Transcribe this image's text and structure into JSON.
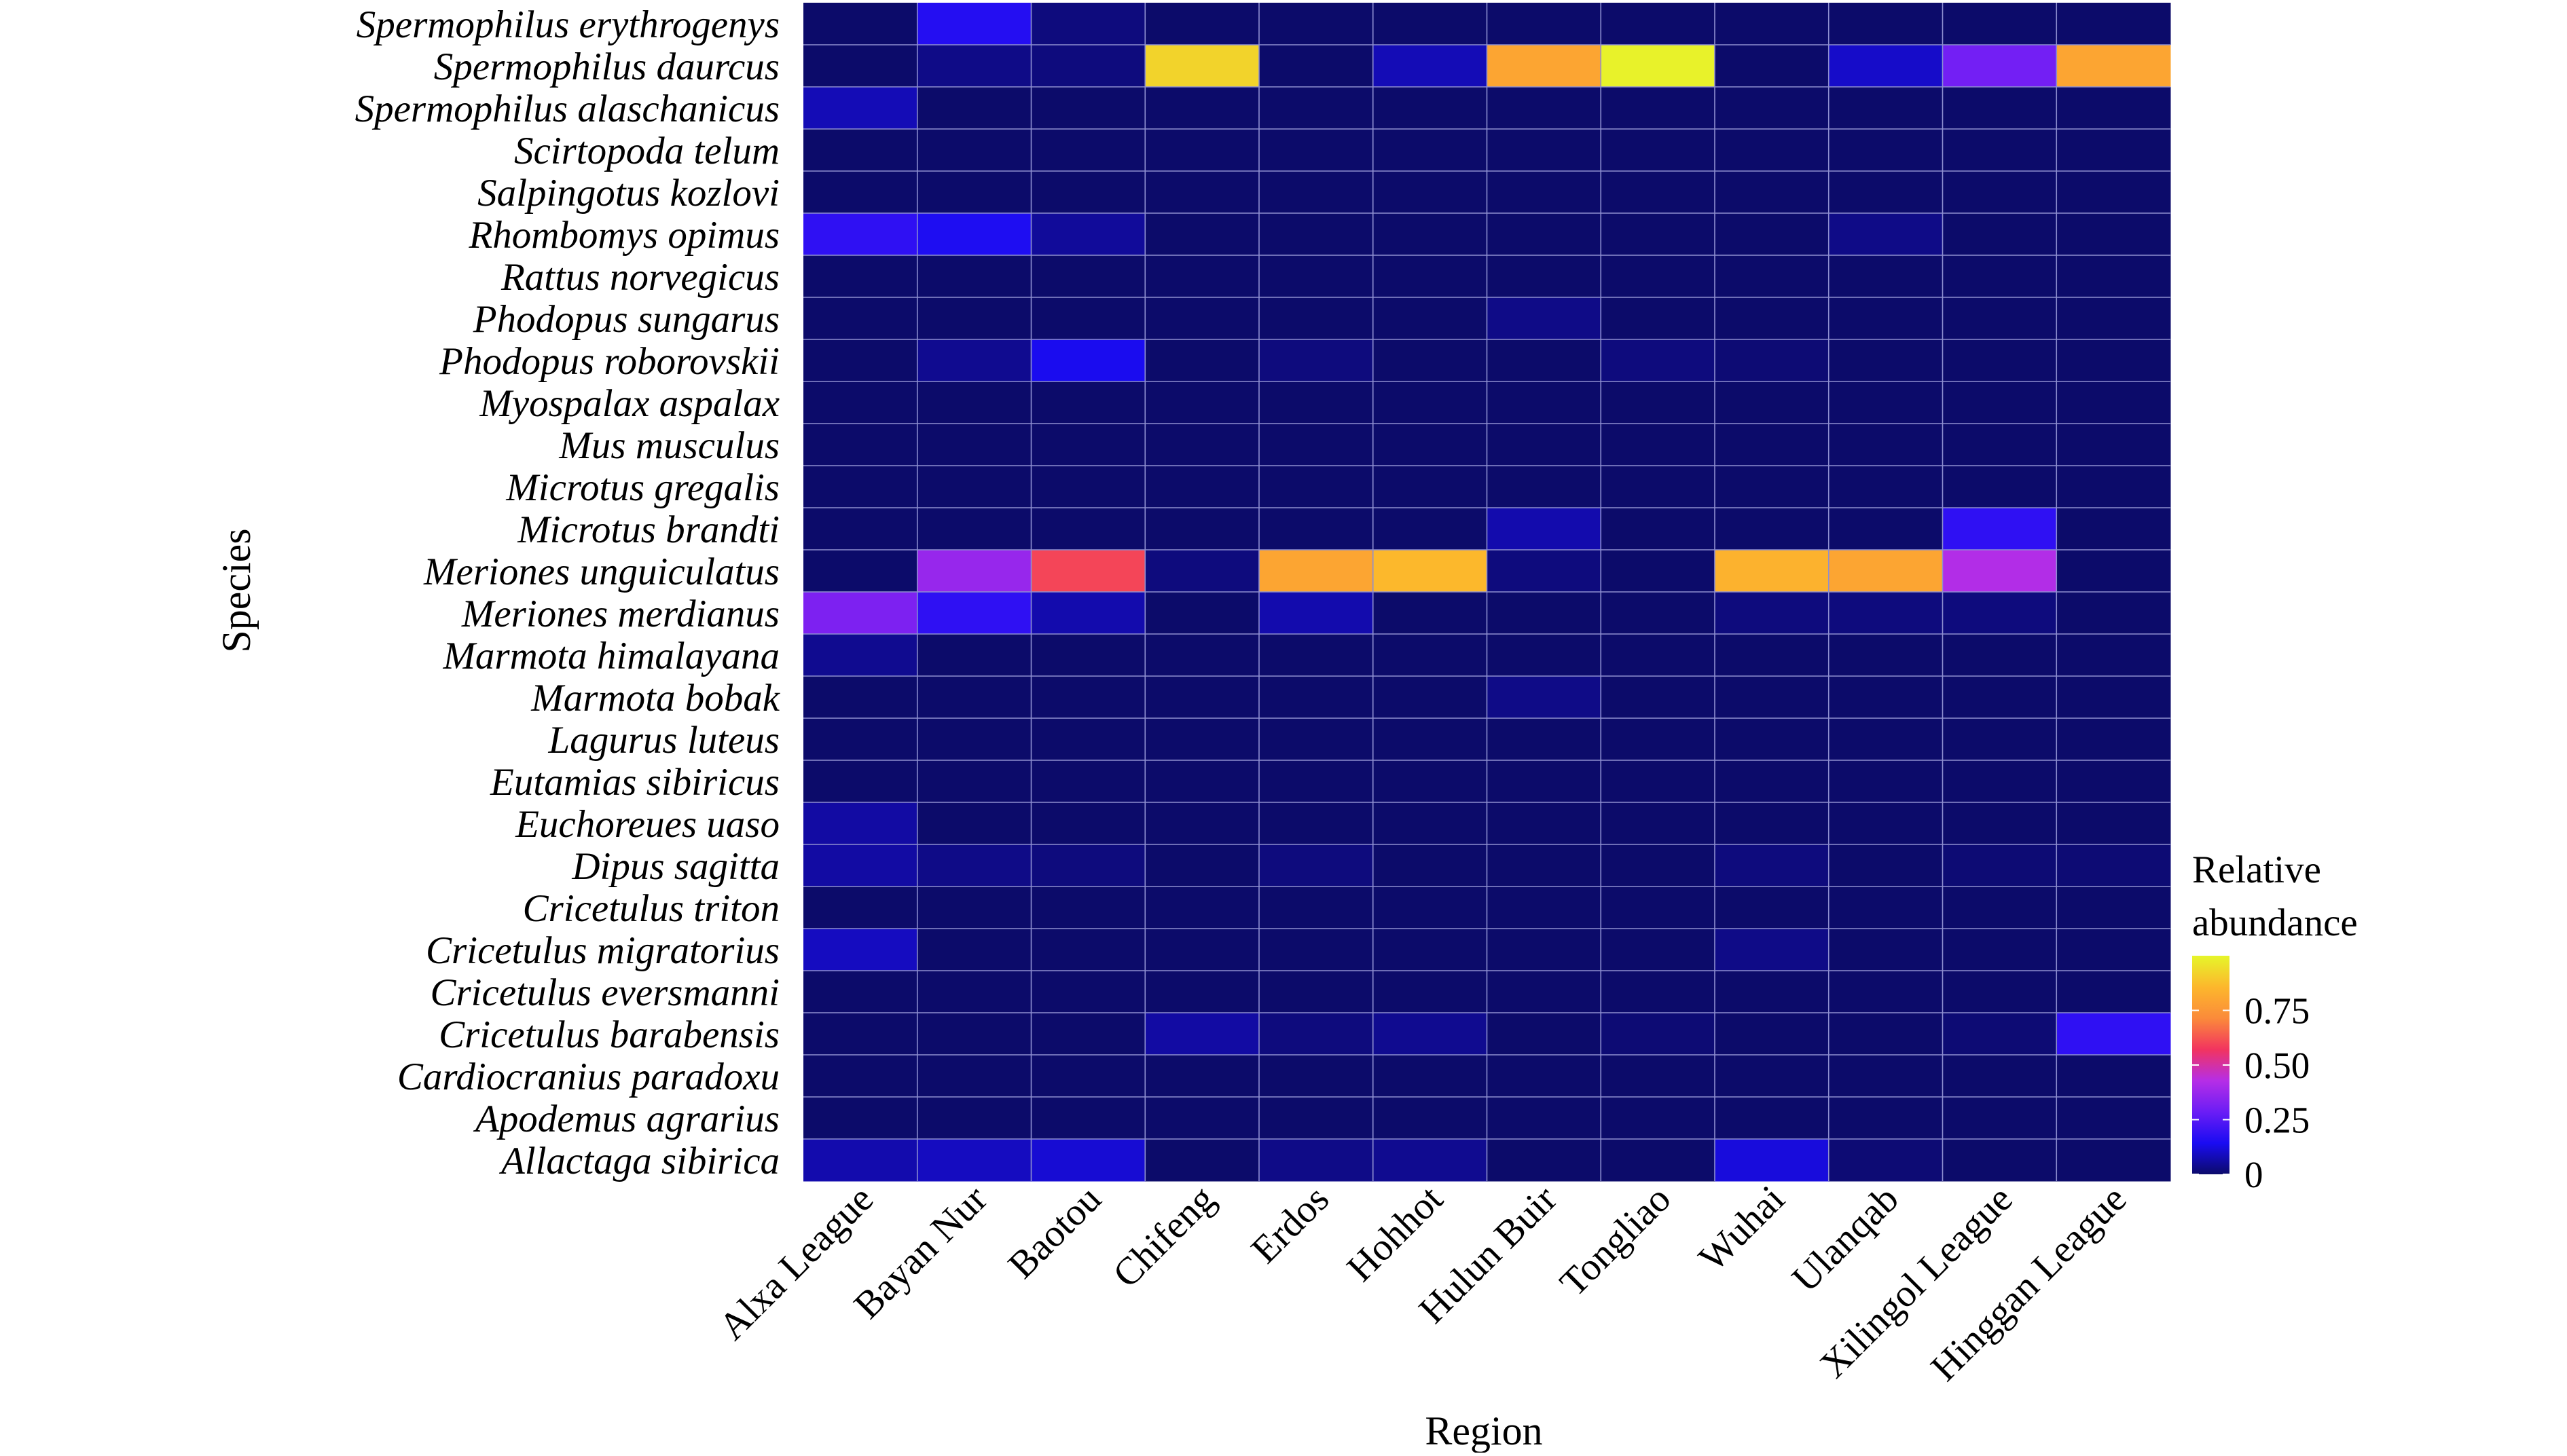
{
  "chart_data": {
    "type": "heatmap",
    "xlabel": "Region",
    "ylabel": "Species",
    "x": [
      "Alxa League",
      "Bayan Nur",
      "Baotou",
      "Chifeng",
      "Erdos",
      "Hohhot",
      "Hulun Buir",
      "Tongliao",
      "Wuhai",
      "Ulanqab",
      "Xilingol League",
      "Hinggan League"
    ],
    "y": [
      "Spermophilus erythrogenys",
      "Spermophilus daurcus",
      "Spermophilus alaschanicus",
      "Scirtopoda telum",
      "Salpingotus kozlovi",
      "Rhombomys opimus",
      "Rattus norvegicus",
      "Phodopus sungarus",
      "Phodopus roborovskii",
      "Myospalax aspalax",
      "Mus musculus",
      "Microtus gregalis",
      "Microtus brandti",
      "Meriones unguiculatus",
      "Meriones merdianus",
      "Marmota himalayana",
      "Marmota bobak",
      "Lagurus luteus",
      "Eutamias sibiricus",
      "Euchoreues uaso",
      "Dipus sagitta",
      "Cricetulus triton",
      "Cricetulus migratorius",
      "Cricetulus eversmanni",
      "Cricetulus barabensis",
      "Cardiocranius paradoxu",
      "Apodemus agrarius",
      "Allactaga sibirica"
    ],
    "values": [
      [
        0.0,
        0.16,
        0.02,
        0.0,
        0.0,
        0.0,
        0.0,
        0.0,
        0.0,
        0.0,
        0.0,
        0.0
      ],
      [
        0.0,
        0.03,
        0.02,
        0.92,
        0.0,
        0.08,
        0.8,
        0.99,
        0.0,
        0.1,
        0.3,
        0.8
      ],
      [
        0.08,
        0.0,
        0.0,
        0.0,
        0.0,
        0.0,
        0.0,
        0.0,
        0.0,
        0.0,
        0.0,
        0.0
      ],
      [
        0.0,
        0.0,
        0.0,
        0.0,
        0.0,
        0.0,
        0.0,
        0.0,
        0.0,
        0.0,
        0.0,
        0.0
      ],
      [
        0.0,
        0.0,
        0.0,
        0.0,
        0.0,
        0.0,
        0.0,
        0.0,
        0.0,
        0.0,
        0.0,
        0.0
      ],
      [
        0.18,
        0.15,
        0.05,
        0.0,
        0.0,
        0.0,
        0.0,
        0.0,
        0.0,
        0.03,
        0.0,
        0.0
      ],
      [
        0.0,
        0.0,
        0.0,
        0.0,
        0.0,
        0.0,
        0.0,
        0.0,
        0.0,
        0.0,
        0.0,
        0.0
      ],
      [
        0.0,
        0.0,
        0.0,
        0.0,
        0.0,
        0.0,
        0.03,
        0.0,
        0.0,
        0.0,
        0.0,
        0.0
      ],
      [
        0.0,
        0.04,
        0.14,
        0.0,
        0.02,
        0.0,
        0.0,
        0.02,
        0.01,
        0.0,
        0.0,
        0.0
      ],
      [
        0.0,
        0.0,
        0.0,
        0.0,
        0.0,
        0.0,
        0.0,
        0.0,
        0.0,
        0.0,
        0.0,
        0.0
      ],
      [
        0.0,
        0.0,
        0.0,
        0.0,
        0.0,
        0.0,
        0.0,
        0.0,
        0.0,
        0.0,
        0.0,
        0.0
      ],
      [
        0.0,
        0.0,
        0.0,
        0.0,
        0.0,
        0.0,
        0.0,
        0.0,
        0.0,
        0.0,
        0.0,
        0.0
      ],
      [
        0.0,
        0.0,
        0.0,
        0.0,
        0.0,
        0.0,
        0.07,
        0.0,
        0.0,
        0.0,
        0.18,
        0.0
      ],
      [
        0.0,
        0.37,
        0.6,
        0.02,
        0.8,
        0.86,
        0.02,
        0.0,
        0.84,
        0.8,
        0.42,
        0.0
      ],
      [
        0.32,
        0.18,
        0.07,
        0.0,
        0.07,
        0.0,
        0.0,
        0.0,
        0.02,
        0.02,
        0.02,
        0.0
      ],
      [
        0.04,
        0.0,
        0.0,
        0.0,
        0.0,
        0.0,
        0.0,
        0.0,
        0.0,
        0.0,
        0.0,
        0.0
      ],
      [
        0.0,
        0.0,
        0.0,
        0.0,
        0.0,
        0.0,
        0.03,
        0.0,
        0.0,
        0.0,
        0.0,
        0.0
      ],
      [
        0.0,
        0.0,
        0.0,
        0.0,
        0.0,
        0.0,
        0.0,
        0.0,
        0.0,
        0.0,
        0.0,
        0.0
      ],
      [
        0.0,
        0.0,
        0.0,
        0.0,
        0.0,
        0.0,
        0.0,
        0.0,
        0.0,
        0.0,
        0.0,
        0.0
      ],
      [
        0.06,
        0.0,
        0.0,
        0.0,
        0.0,
        0.0,
        0.0,
        0.0,
        0.0,
        0.0,
        0.0,
        0.0
      ],
      [
        0.06,
        0.03,
        0.02,
        0.0,
        0.02,
        0.0,
        0.0,
        0.0,
        0.02,
        0.0,
        0.01,
        0.01
      ],
      [
        0.0,
        0.0,
        0.0,
        0.0,
        0.0,
        0.0,
        0.0,
        0.0,
        0.0,
        0.0,
        0.0,
        0.0
      ],
      [
        0.09,
        0.0,
        0.0,
        0.0,
        0.0,
        0.0,
        0.0,
        0.0,
        0.03,
        0.0,
        0.0,
        0.0
      ],
      [
        0.0,
        0.0,
        0.0,
        0.0,
        0.0,
        0.0,
        0.0,
        0.0,
        0.0,
        0.0,
        0.0,
        0.0
      ],
      [
        0.0,
        0.0,
        0.0,
        0.06,
        0.02,
        0.04,
        0.0,
        0.01,
        0.0,
        0.0,
        0.01,
        0.18
      ],
      [
        0.0,
        0.0,
        0.0,
        0.0,
        0.0,
        0.0,
        0.0,
        0.0,
        0.0,
        0.0,
        0.0,
        0.0
      ],
      [
        0.0,
        0.0,
        0.0,
        0.0,
        0.0,
        0.0,
        0.0,
        0.0,
        0.0,
        0.0,
        0.0,
        0.0
      ],
      [
        0.07,
        0.09,
        0.11,
        0.0,
        0.03,
        0.04,
        0.0,
        0.0,
        0.12,
        0.01,
        0.0,
        0.0
      ]
    ],
    "legend": {
      "title_lines": [
        "Relative",
        "abundance"
      ],
      "ticks": [
        0,
        0.25,
        0.5,
        0.75
      ],
      "tick_labels": [
        "0",
        "0.25",
        "0.50",
        "0.75"
      ],
      "range": [
        0,
        1
      ],
      "placement": "right"
    },
    "colorscale": [
      "#0c0b6a",
      "#1a0cf2",
      "#6b1df5",
      "#b62ee6",
      "#f2345f",
      "#fb8b3a",
      "#fcb72c",
      "#e6f62a"
    ],
    "grid_color": "#8e8fd0",
    "grid": true
  }
}
